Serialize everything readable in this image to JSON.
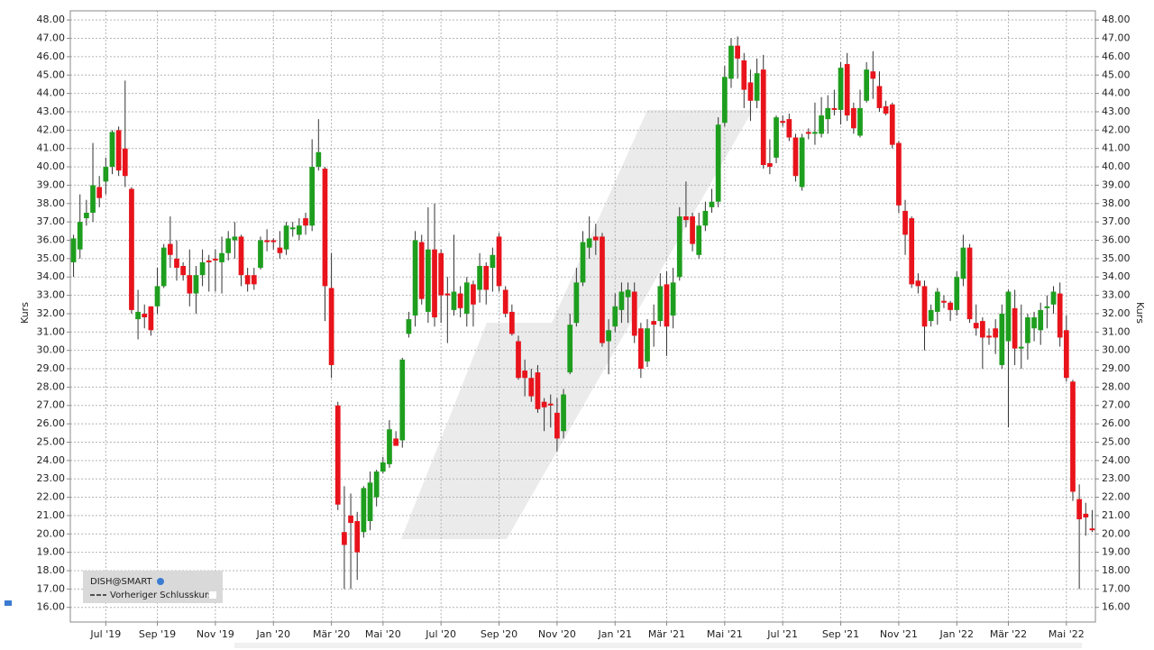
{
  "chart_data": {
    "type": "candlestick",
    "y_label": "Kurs",
    "categories": [
      null,
      null,
      null,
      null,
      null,
      "Jul '19",
      null,
      null,
      null,
      null,
      null,
      null,
      null,
      "Sep '19",
      null,
      null,
      null,
      null,
      null,
      null,
      null,
      null,
      "Nov '19",
      null,
      null,
      null,
      null,
      null,
      null,
      null,
      null,
      "Jan '20",
      null,
      null,
      null,
      null,
      null,
      null,
      null,
      null,
      "Mär '20",
      null,
      null,
      null,
      null,
      null,
      null,
      null,
      "Mai '20",
      null,
      null,
      null,
      null,
      null,
      null,
      null,
      null,
      "Jul '20",
      null,
      null,
      null,
      null,
      null,
      null,
      null,
      null,
      "Sep '20",
      null,
      null,
      null,
      null,
      null,
      null,
      null,
      null,
      "Nov '20",
      null,
      null,
      null,
      null,
      null,
      null,
      null,
      null,
      "Jan '21",
      null,
      null,
      null,
      null,
      null,
      null,
      null,
      "Mär '21",
      null,
      null,
      null,
      null,
      null,
      null,
      null,
      null,
      "Mai '21",
      null,
      null,
      null,
      null,
      null,
      null,
      null,
      null,
      "Jul '21",
      null,
      null,
      null,
      null,
      null,
      null,
      null,
      null,
      "Sep '21",
      null,
      null,
      null,
      null,
      null,
      null,
      null,
      null,
      "Nov '21",
      null,
      null,
      null,
      null,
      null,
      null,
      null,
      null,
      "Jan '22",
      null,
      null,
      null,
      null,
      null,
      null,
      null,
      "Mär '22",
      null,
      null,
      null,
      null,
      null,
      null,
      null,
      null,
      "Mai '22",
      null,
      null,
      null,
      null
    ],
    "series": [
      {
        "name": "DISH@SMART",
        "up_color": "#1e9e1e",
        "down_color": "#e8131b",
        "open": [
          34.8,
          35.5,
          37.2,
          37.5,
          38.9,
          39.2,
          40,
          42,
          41,
          38.8,
          31.7,
          32,
          32.4,
          32.4,
          33.5,
          35.8,
          35,
          34.6,
          34.1,
          33.1,
          34.1,
          34.9,
          35,
          34.8,
          35.3,
          36,
          36.2,
          34.1,
          34.1,
          34.5,
          36,
          36,
          35.6,
          35.5,
          36.6,
          36.3,
          37.2,
          36.8,
          40,
          39.9,
          33.4,
          27,
          20.1,
          21,
          20.7,
          20.1,
          20.7,
          22,
          23.4,
          23.8,
          25.2,
          25.1,
          30.9,
          31.9,
          35.9,
          32.1,
          35.5,
          35.3,
          33.1,
          32.2,
          33.1,
          32,
          33.6,
          33.3,
          34.6,
          34.5,
          36.2,
          33.3,
          32.1,
          30.5,
          28.9,
          28.5,
          28.8,
          27.2,
          27.1,
          26.6,
          25.6,
          28.8,
          31.5,
          33.7,
          35.6,
          36.2,
          36.2,
          30.5,
          31.3,
          32.2,
          32.9,
          33.2,
          31.2,
          29.4,
          31.6,
          31.6,
          33.6,
          31.9,
          34,
          37.3,
          37.3,
          35.2,
          36.8,
          37.8,
          38.1,
          42.4,
          44.8,
          46.6,
          45.8,
          44.6,
          43.6,
          45.3,
          40.2,
          40.5,
          42.5,
          42.6,
          41.6,
          38.9,
          41.9,
          41.8,
          41.8,
          42.6,
          43.2,
          43.1,
          45.6,
          43.2,
          41.7,
          43.6,
          45.2,
          44.4,
          43.3,
          43.4,
          41.3,
          37.6,
          37.2,
          33.8,
          33.5,
          31.6,
          32.1,
          32.7,
          32.6,
          32.2,
          33.9,
          35.6,
          31.5,
          31.6,
          30.8,
          31.2,
          29.2,
          30.5,
          32.3,
          30.1,
          30.4,
          31.2,
          31.1,
          32.3,
          32.5,
          33.1,
          31.1,
          28.3,
          21.9,
          21.1,
          20.3
        ],
        "high": [
          36.3,
          38.5,
          38.2,
          41.3,
          39.5,
          40.5,
          42,
          42.2,
          44.7,
          38.9,
          33.3,
          32.5,
          32.4,
          34.5,
          35.8,
          37.3,
          36,
          34.8,
          35.5,
          34.6,
          35.5,
          35.2,
          35.5,
          36.2,
          36.5,
          37,
          36.3,
          34.5,
          34.5,
          36.2,
          36.6,
          36.1,
          36.5,
          37,
          37,
          37.2,
          37.5,
          41.5,
          42.6,
          40,
          35.3,
          27.2,
          22.6,
          22.2,
          21.2,
          22.6,
          23.4,
          23.5,
          24.2,
          26.2,
          25.6,
          29.6,
          32.1,
          36.5,
          36.3,
          37.8,
          38,
          35.5,
          34,
          36.3,
          33.5,
          34,
          33.8,
          35.3,
          34.8,
          35.6,
          36.4,
          33.5,
          32.5,
          30.8,
          29.5,
          29,
          29.2,
          27.4,
          27.6,
          27.4,
          27.9,
          32,
          34.5,
          36.5,
          37.3,
          36.9,
          36.4,
          31.7,
          33.1,
          33.7,
          33.7,
          33.7,
          31.5,
          31.7,
          32.5,
          34.2,
          34.3,
          34.5,
          37.8,
          39.2,
          37.5,
          37.5,
          38.1,
          38.8,
          42.7,
          45.5,
          47,
          47.1,
          46.2,
          45.3,
          45.9,
          46.1,
          41.5,
          42.8,
          42.8,
          42.9,
          41.8,
          41.8,
          42.1,
          43.5,
          43.8,
          43.9,
          44.2,
          45.7,
          46.2,
          43.5,
          44.2,
          45.7,
          46.3,
          45.2,
          43.6,
          43.5,
          41.4,
          38.2,
          37.3,
          34.2,
          33.8,
          32.5,
          33.4,
          33,
          32.7,
          34.3,
          36.3,
          35.8,
          32.5,
          31.8,
          31.2,
          31.7,
          32.5,
          33.3,
          33.3,
          32.5,
          32,
          32.1,
          32.6,
          33,
          33.5,
          33.7,
          31.9,
          28.4,
          22.7,
          21.7,
          21.3
        ],
        "low": [
          34,
          35,
          36.8,
          37,
          37.8,
          38.5,
          39.6,
          39.5,
          38.9,
          32,
          30.6,
          31.2,
          30.8,
          32,
          33.4,
          34.5,
          33.8,
          33.8,
          32.4,
          32,
          33.5,
          33.2,
          33.2,
          33.1,
          34.9,
          35,
          33.5,
          33.2,
          33.3,
          34.4,
          35.4,
          35.5,
          35,
          35.2,
          36.2,
          36,
          36.3,
          36.5,
          39.8,
          31.6,
          28.5,
          21.3,
          17,
          17,
          17.5,
          19.8,
          20.2,
          21.5,
          23.3,
          23.6,
          24.8,
          24.7,
          30.7,
          31.3,
          32.5,
          31.5,
          31.3,
          31.5,
          30.4,
          31.9,
          31.8,
          31.3,
          31.3,
          32.6,
          32.5,
          33.2,
          33.2,
          31.8,
          30.8,
          28.4,
          27.5,
          27.2,
          26.6,
          25.6,
          25.8,
          24.5,
          25.2,
          28.7,
          31.3,
          33.5,
          35,
          35.2,
          30.2,
          28.7,
          31,
          31.5,
          31.5,
          30.4,
          28.5,
          29.1,
          30.2,
          31.3,
          29.7,
          31.2,
          33.8,
          36.7,
          35.4,
          35,
          36.5,
          37.5,
          37.8,
          42.2,
          44.3,
          44.8,
          43.2,
          42.5,
          43.2,
          39.9,
          39.6,
          40.2,
          42.2,
          41.4,
          39.2,
          38.7,
          41.5,
          41.2,
          41.6,
          41.8,
          42.8,
          42.3,
          42.5,
          41.8,
          41.6,
          43.5,
          43.7,
          43,
          42.8,
          41,
          37.5,
          35.2,
          33.4,
          33.1,
          30,
          31.3,
          31.4,
          32.3,
          31.6,
          31.9,
          33.5,
          31.5,
          30.8,
          29,
          30.3,
          29.8,
          29,
          25.8,
          29.2,
          29,
          29.5,
          30.5,
          30.3,
          31.2,
          32,
          30.2,
          28.3,
          21.8,
          17,
          19.9,
          20.1
        ],
        "close": [
          36.1,
          37,
          37.5,
          39,
          38.3,
          40,
          41.9,
          39.8,
          39.5,
          32.2,
          32.1,
          31.8,
          31.1,
          33.5,
          35.6,
          35.2,
          34.5,
          34.1,
          33.1,
          34.1,
          34.8,
          34.8,
          34.9,
          35.3,
          36.1,
          36.2,
          34.1,
          33.6,
          33.6,
          36,
          35.9,
          35.9,
          35.3,
          36.8,
          36.7,
          36.8,
          36.8,
          40,
          40.8,
          33.5,
          29.2,
          21.6,
          19.4,
          20.6,
          19,
          22.5,
          22.8,
          23.4,
          23.9,
          25.7,
          24.8,
          29.5,
          31.7,
          36,
          32.8,
          35.5,
          31.8,
          33,
          33,
          33.2,
          32.3,
          33.7,
          32.5,
          34.6,
          33.3,
          35.2,
          33.5,
          32,
          30.9,
          28.5,
          28.5,
          27.5,
          26.8,
          26.9,
          27,
          25.2,
          27.6,
          31.4,
          33.7,
          35.9,
          36.1,
          36,
          30.4,
          31.1,
          32.4,
          33.2,
          33.3,
          30.8,
          29,
          31.2,
          31.4,
          33.5,
          31.3,
          33.7,
          37.3,
          37.1,
          35.8,
          36.8,
          37.6,
          38.1,
          42.3,
          44.9,
          46.6,
          45.9,
          44.2,
          43.6,
          45.1,
          40.1,
          40,
          42.7,
          42.4,
          41.6,
          39.5,
          41.6,
          41.8,
          41.9,
          42.8,
          43.2,
          43.1,
          45.4,
          42.8,
          42.1,
          43.2,
          45.3,
          44.8,
          43.2,
          42.9,
          41.2,
          37.9,
          36.3,
          33.6,
          33.5,
          31.3,
          32.2,
          33.2,
          32.6,
          32.2,
          34,
          35.6,
          31.7,
          31.2,
          30.7,
          30.7,
          30.7,
          32,
          33.2,
          30.1,
          30.2,
          31.8,
          31.8,
          32.2,
          32.4,
          33.2,
          30.7,
          28.5,
          22.3,
          20.8,
          20.9,
          20.2
        ]
      },
      {
        "name": "Vorheriger Schlusskurs",
        "color": "#222222",
        "dashed": true
      }
    ],
    "ylim": [
      15.2,
      48.5
    ],
    "yticks": [
      {
        "value": 16,
        "label": "16.00"
      },
      {
        "value": 17,
        "label": "17.00"
      },
      {
        "value": 18,
        "label": "18.00"
      },
      {
        "value": 19,
        "label": "19.00"
      },
      {
        "value": 20,
        "label": "20.00"
      },
      {
        "value": 21,
        "label": "21.00"
      },
      {
        "value": 22,
        "label": "22.00"
      },
      {
        "value": 23,
        "label": "23.00"
      },
      {
        "value": 24,
        "label": "24.00"
      },
      {
        "value": 25,
        "label": "25.00"
      },
      {
        "value": 26,
        "label": "26.00"
      },
      {
        "value": 27,
        "label": "27.00"
      },
      {
        "value": 28,
        "label": "28.00"
      },
      {
        "value": 29,
        "label": "29.00"
      },
      {
        "value": 30,
        "label": "30.00"
      },
      {
        "value": 31,
        "label": "31.00"
      },
      {
        "value": 32,
        "label": "32.00"
      },
      {
        "value": 33,
        "label": "33.00"
      },
      {
        "value": 34,
        "label": "34.00"
      },
      {
        "value": 35,
        "label": "35.00"
      },
      {
        "value": 36,
        "label": "36.00"
      },
      {
        "value": 37,
        "label": "37.00"
      },
      {
        "value": 38,
        "label": "38.00"
      },
      {
        "value": 39,
        "label": "39.00"
      },
      {
        "value": 40,
        "label": "40.00"
      },
      {
        "value": 41,
        "label": "41.00"
      },
      {
        "value": 42,
        "label": "42.00"
      },
      {
        "value": 43,
        "label": "43.00"
      },
      {
        "value": 44,
        "label": "44.00"
      },
      {
        "value": 45,
        "label": "45.00"
      },
      {
        "value": 46,
        "label": "46.00"
      },
      {
        "value": 47,
        "label": "47.00"
      },
      {
        "value": 48,
        "label": "48.00"
      }
    ],
    "grid": true,
    "legend": "lower left"
  }
}
